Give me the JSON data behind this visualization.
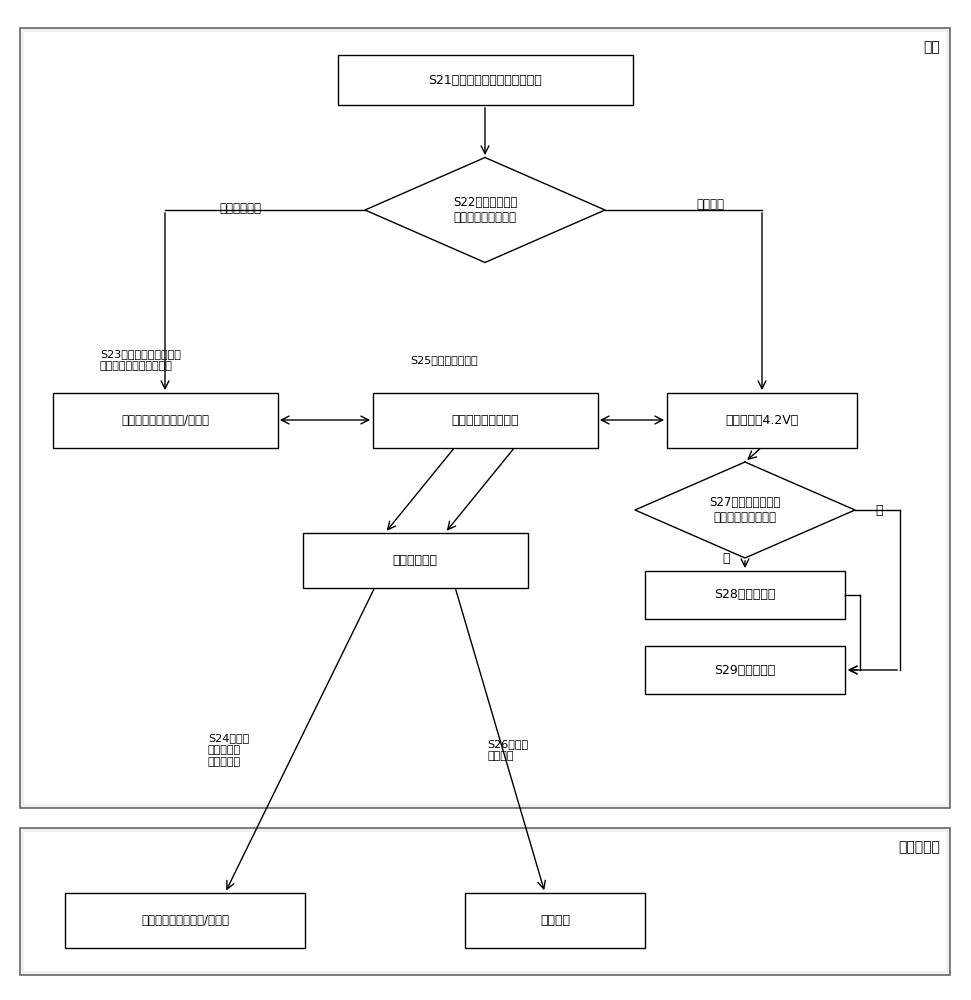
{
  "label_phone": "手机",
  "label_other_phone": "另一台手机",
  "label_s21": "S21，获取用户当前选择的模式",
  "label_s22": "S22，当前选择的\n模式是否为放电模式",
  "label_data_mode": "传输数据模式",
  "label_discharge_mode": "放电模式",
  "label_s23": "S23，获取本地数据，或\n者接收外部数据，并保存",
  "label_s25": "S25，获取输出电量",
  "label_storage": "手机儲存装置（内存/硬盘）",
  "label_power": "电源及通讨管理模块",
  "label_bat_phone": "手机电池（4.2V）",
  "label_s27": "S27，判断本机当前\n电量是否小于设定値",
  "label_no": "否",
  "label_yes": "是",
  "label_s28": "S28，停止放电",
  "label_s29": "S29，继续放电",
  "label_cable": "可伸缩传输线",
  "label_s24": "S24，传输\n本地数据或\n者外部数据",
  "label_s26": "S26，传输\n输出电量",
  "label_other_storage": "手机存储装置（内存/硬盘）",
  "label_other_battery": "手机电池",
  "fig_w": 9.71,
  "fig_h": 10.0,
  "dpi": 100
}
